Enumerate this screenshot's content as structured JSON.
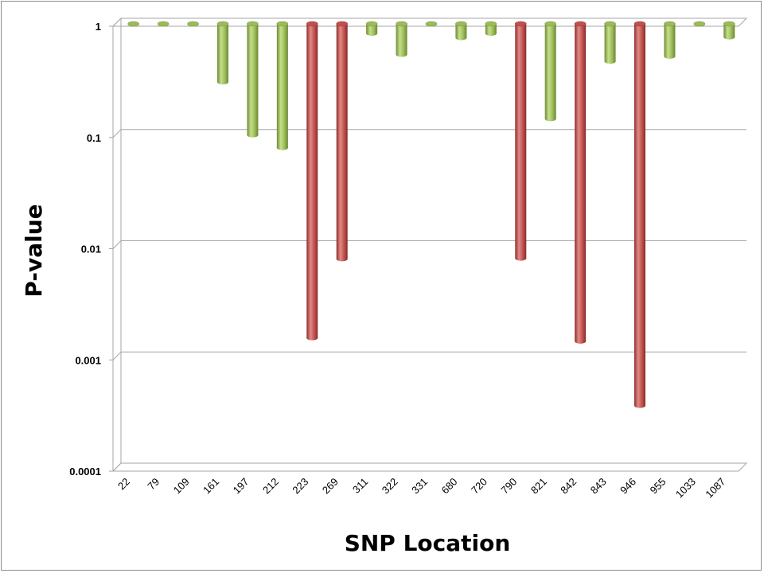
{
  "chart_data": {
    "type": "bar",
    "title": "",
    "xlabel": "SNP Location",
    "ylabel": "P-value",
    "yscale": "log",
    "ylim": [
      0.0001,
      1
    ],
    "yticks": [
      "1",
      "0.1",
      "0.01",
      "0.001",
      "0.0001"
    ],
    "bar_direction": "hanging-from-top",
    "grid": true,
    "categories": [
      "22",
      "79",
      "109",
      "161",
      "197",
      "212",
      "223",
      "269",
      "311",
      "322",
      "331",
      "680",
      "720",
      "790",
      "821",
      "842",
      "843",
      "946",
      "955",
      "1033",
      "1087"
    ],
    "values": [
      1,
      1,
      1,
      0.3,
      0.1,
      0.077,
      0.0015,
      0.0077,
      0.82,
      0.53,
      1,
      0.75,
      0.82,
      0.0078,
      0.14,
      0.0014,
      0.46,
      0.00037,
      0.51,
      1,
      0.76
    ],
    "highlight": [
      false,
      false,
      false,
      false,
      false,
      false,
      true,
      true,
      false,
      false,
      false,
      false,
      false,
      true,
      false,
      true,
      false,
      true,
      false,
      false,
      false
    ],
    "colors": {
      "normal": "#9bbb59",
      "highlight": "#c0504d",
      "grid": "#a6a6a6"
    }
  }
}
